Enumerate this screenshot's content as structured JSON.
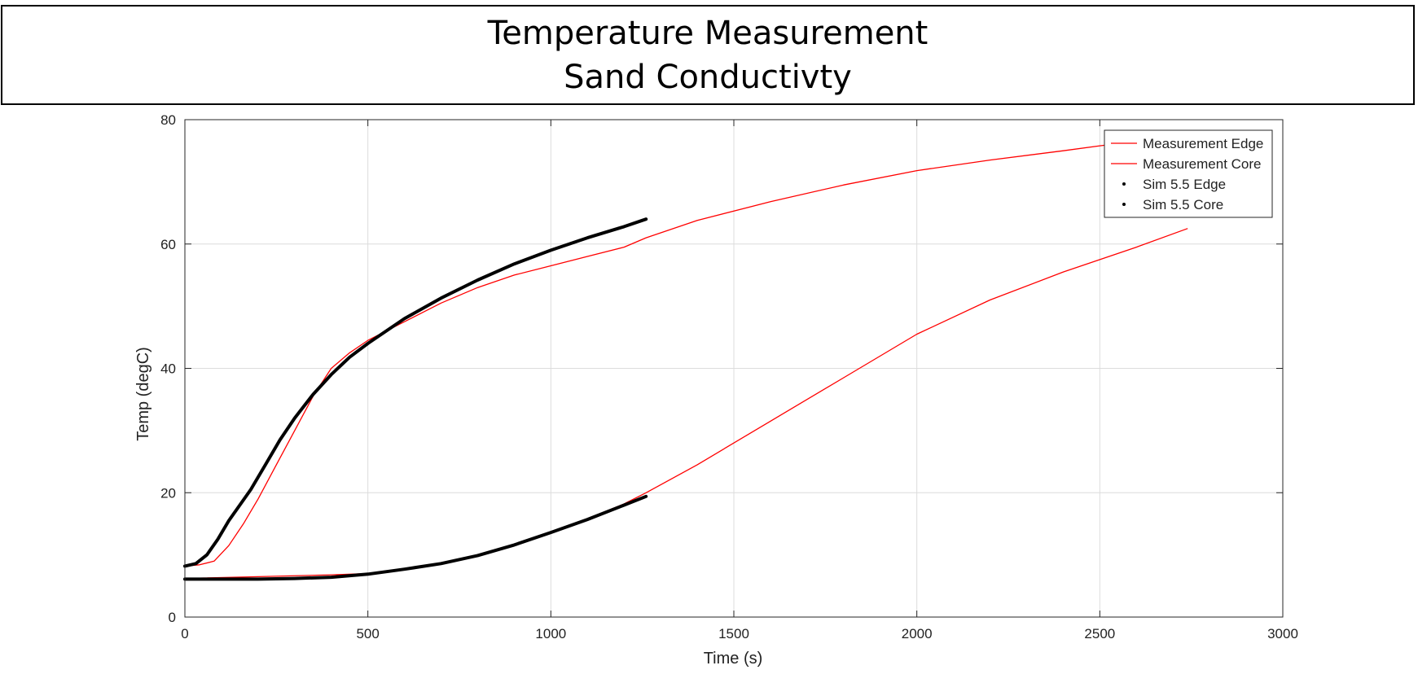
{
  "title_lines": [
    "Temperature Measurement",
    "Sand Conductivty"
  ],
  "chart_data": {
    "type": "line",
    "xlabel": "Time (s)",
    "ylabel": "Temp (degC)",
    "xlim": [
      0,
      3000
    ],
    "ylim": [
      0,
      80
    ],
    "xticks": [
      0,
      500,
      1000,
      1500,
      2000,
      2500,
      3000
    ],
    "yticks": [
      0,
      20,
      40,
      60,
      80
    ],
    "grid": true,
    "legend_position": "top-right",
    "series": [
      {
        "name": "Measurement Edge",
        "style": "line",
        "color": "#ff0000",
        "x": [
          0,
          40,
          80,
          120,
          160,
          200,
          250,
          300,
          350,
          400,
          450,
          500,
          600,
          700,
          800,
          900,
          1000,
          1100,
          1200,
          1260,
          1400,
          1600,
          1800,
          2000,
          2200,
          2400,
          2500,
          2600,
          2700,
          2740
        ],
        "y": [
          8.2,
          8.4,
          9.0,
          11.5,
          15.0,
          19.0,
          24.5,
          30.0,
          35.5,
          40.0,
          42.5,
          44.5,
          47.5,
          50.5,
          53.0,
          55.0,
          56.5,
          58.0,
          59.5,
          61.0,
          63.8,
          66.8,
          69.5,
          71.8,
          73.5,
          75.0,
          75.8,
          76.5,
          77.2,
          77.6
        ]
      },
      {
        "name": "Measurement Core",
        "style": "line",
        "color": "#ff0000",
        "x": [
          0,
          200,
          400,
          500,
          600,
          700,
          800,
          900,
          1000,
          1100,
          1200,
          1260,
          1400,
          1600,
          1800,
          2000,
          2200,
          2400,
          2600,
          2740
        ],
        "y": [
          6.2,
          6.5,
          6.8,
          7.0,
          7.6,
          8.6,
          9.8,
          11.6,
          13.6,
          15.8,
          18.2,
          20.0,
          24.5,
          31.5,
          38.5,
          45.5,
          51.0,
          55.5,
          59.5,
          62.5
        ]
      },
      {
        "name": "Sim 5.5 Edge",
        "style": "points",
        "color": "#000000",
        "x": [
          0,
          30,
          60,
          90,
          120,
          150,
          180,
          220,
          260,
          300,
          350,
          400,
          450,
          500,
          600,
          700,
          800,
          900,
          1000,
          1100,
          1200,
          1260
        ],
        "y": [
          8.2,
          8.6,
          10.0,
          12.5,
          15.5,
          18.0,
          20.5,
          24.5,
          28.5,
          32.0,
          35.8,
          39.0,
          41.8,
          44.0,
          48.0,
          51.3,
          54.2,
          56.8,
          59.0,
          61.0,
          62.8,
          64.0
        ]
      },
      {
        "name": "Sim 5.5 Core",
        "style": "points",
        "color": "#000000",
        "x": [
          0,
          100,
          200,
          300,
          400,
          500,
          600,
          700,
          800,
          900,
          1000,
          1100,
          1200,
          1260
        ],
        "y": [
          6.1,
          6.1,
          6.1,
          6.2,
          6.4,
          6.9,
          7.7,
          8.6,
          9.9,
          11.6,
          13.6,
          15.7,
          18.0,
          19.4
        ]
      }
    ]
  }
}
